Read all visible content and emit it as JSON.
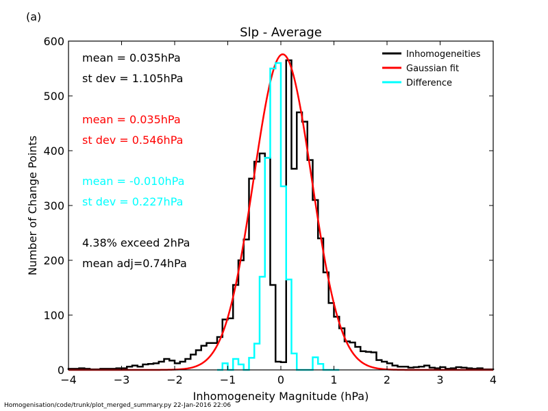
{
  "panel_label": "(a)",
  "footer": "Homogenisation/code/trunk/plot_merged_summary.py   22-Jan-2016 22:06",
  "stats": {
    "black_mean": "mean =  0.035hPa",
    "black_sd": "st dev =  1.105hPa",
    "red_mean": "mean =  0.035hPa",
    "red_sd": "st dev =  0.546hPa",
    "cyan_mean": "mean = -0.010hPa",
    "cyan_sd": "st dev =  0.227hPa",
    "exceed": "4.38% exceed 2hPa",
    "mean_adj": "mean adj=0.74hPa"
  },
  "colors": {
    "black": "#000000",
    "red": "#ff0000",
    "cyan": "#00ffff"
  },
  "chart_data": {
    "type": "line",
    "title": "Slp - Average",
    "xlabel": "Inhomogeneity Magnitude (hPa)",
    "ylabel": "Number of Change Points",
    "xlim": [
      -4,
      4
    ],
    "ylim": [
      0,
      600
    ],
    "xticks": [
      -4,
      -3,
      -2,
      -1,
      0,
      1,
      2,
      3,
      4
    ],
    "yticks": [
      0,
      100,
      200,
      300,
      400,
      500,
      600
    ],
    "xtick_labels": [
      "−4",
      "−3",
      "−2",
      "−1",
      "0",
      "1",
      "2",
      "3",
      "4"
    ],
    "ytick_labels": [
      "0",
      "100",
      "200",
      "300",
      "400",
      "500",
      "600"
    ],
    "legend_position": "top-right",
    "legend": [
      "Inhomogeneities",
      "Gaussian fit",
      "Difference"
    ],
    "series": [
      {
        "name": "Inhomogeneities",
        "style": "step",
        "color": "#000000",
        "bin_edges": [
          -4.0,
          -3.9,
          -3.8,
          -3.7,
          -3.6,
          -3.5,
          -3.4,
          -3.3,
          -3.2,
          -3.1,
          -3.0,
          -2.9,
          -2.8,
          -2.7,
          -2.6,
          -2.5,
          -2.4,
          -2.3,
          -2.2,
          -2.1,
          -2.0,
          -1.9,
          -1.8,
          -1.7,
          -1.6,
          -1.5,
          -1.4,
          -1.3,
          -1.2,
          -1.1,
          -1.0,
          -0.9,
          -0.8,
          -0.7,
          -0.6,
          -0.5,
          -0.4,
          -0.3,
          -0.2,
          -0.1,
          0.0,
          0.1,
          0.2,
          0.3,
          0.4,
          0.5,
          0.6,
          0.7,
          0.8,
          0.9,
          1.0,
          1.1,
          1.2,
          1.3,
          1.4,
          1.5,
          1.6,
          1.7,
          1.8,
          1.9,
          2.0,
          2.1,
          2.2,
          2.3,
          2.4,
          2.5,
          2.6,
          2.7,
          2.8,
          2.9,
          3.0,
          3.1,
          3.2,
          3.3,
          3.4,
          3.5,
          3.6,
          3.7,
          3.8,
          3.9,
          4.0
        ],
        "counts": [
          2,
          2,
          3,
          2,
          1,
          1,
          2,
          2,
          2,
          3,
          3,
          6,
          8,
          6,
          10,
          11,
          12,
          15,
          20,
          17,
          12,
          15,
          20,
          28,
          36,
          44,
          49,
          49,
          60,
          92,
          94,
          155,
          200,
          238,
          349,
          380,
          395,
          387,
          155,
          15,
          14,
          565,
          367,
          470,
          453,
          383,
          310,
          240,
          178,
          122,
          97,
          76,
          52,
          50,
          42,
          34,
          33,
          32,
          18,
          15,
          12,
          8,
          6,
          6,
          4,
          5,
          6,
          8,
          4,
          3,
          5,
          2,
          3,
          5,
          4,
          3,
          2,
          3,
          1,
          1
        ]
      },
      {
        "name": "Gaussian fit",
        "style": "curve",
        "color": "#ff0000",
        "mean": 0.035,
        "stdev": 0.546,
        "peak": 576
      },
      {
        "name": "Difference",
        "style": "step",
        "color": "#00ffff",
        "bin_edges": [
          -1.2,
          -1.1,
          -1.0,
          -0.9,
          -0.8,
          -0.7,
          -0.6,
          -0.5,
          -0.4,
          -0.3,
          -0.2,
          -0.1,
          0.0,
          0.1,
          0.2,
          0.3,
          0.4,
          0.5,
          0.6,
          0.7,
          0.8,
          0.9,
          1.0,
          1.1
        ],
        "counts": [
          0,
          12,
          0,
          20,
          10,
          0,
          22,
          48,
          170,
          387,
          550,
          560,
          335,
          165,
          30,
          0,
          0,
          0,
          23,
          11,
          0,
          0,
          0
        ]
      }
    ]
  }
}
